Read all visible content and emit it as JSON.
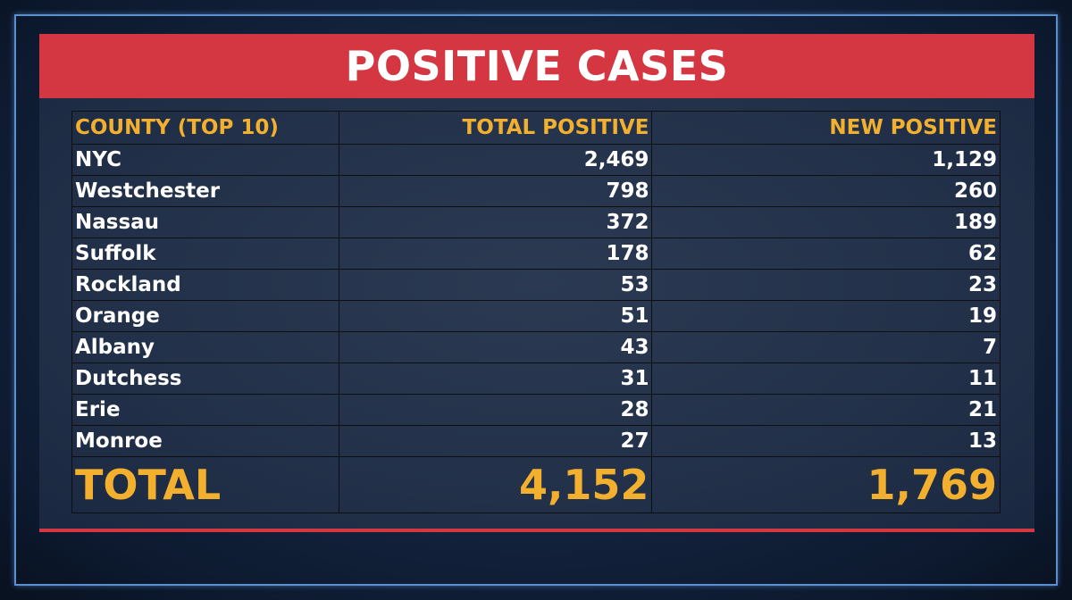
{
  "title": "POSITIVE CASES",
  "columns": [
    "COUNTY (TOP 10)",
    "TOTAL POSITIVE",
    "NEW POSITIVE"
  ],
  "rows": [
    {
      "county": "NYC",
      "total": "2,469",
      "new": "1,129"
    },
    {
      "county": "Westchester",
      "total": "798",
      "new": "260"
    },
    {
      "county": "Nassau",
      "total": "372",
      "new": "189"
    },
    {
      "county": "Suffolk",
      "total": "178",
      "new": "62"
    },
    {
      "county": "Rockland",
      "total": "53",
      "new": "23"
    },
    {
      "county": "Orange",
      "total": "51",
      "new": "19"
    },
    {
      "county": "Albany",
      "total": "43",
      "new": "7"
    },
    {
      "county": "Dutchess",
      "total": "31",
      "new": "11"
    },
    {
      "county": "Erie",
      "total": "28",
      "new": "21"
    },
    {
      "county": "Monroe",
      "total": "27",
      "new": "13"
    }
  ],
  "total_row": {
    "label": "TOTAL",
    "total": "4,152",
    "new": "1,769"
  },
  "colors": {
    "accent_red": "#d43642",
    "header_gold": "#f2b02e",
    "text_white": "#ffffff",
    "frame_blue": "#5a8fd0"
  }
}
